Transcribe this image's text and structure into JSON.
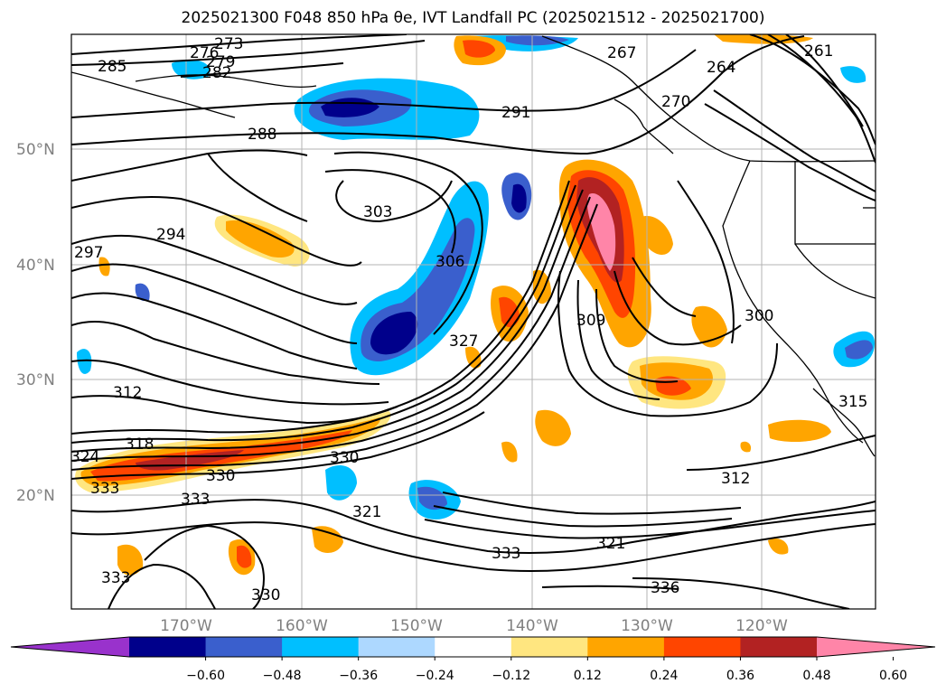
{
  "title": "2025021300 F048 850 hPa θe, IVT Landfall PC (2025021512 - 2025021700)",
  "latitude_labels": [
    "50°N",
    "40°N",
    "30°N",
    "20°N"
  ],
  "longitude_labels": [
    "170°W",
    "160°W",
    "150°W",
    "140°W",
    "130°W",
    "120°W"
  ],
  "contour_labels": [
    "273",
    "276",
    "279",
    "282",
    "285",
    "288",
    "291",
    "294",
    "297",
    "300",
    "303",
    "306",
    "309",
    "312",
    "315",
    "318",
    "321",
    "324",
    "327",
    "330",
    "333",
    "336",
    "261",
    "264",
    "267",
    "270"
  ],
  "colorbar": {
    "ticks": [
      "−0.60",
      "−0.48",
      "−0.36",
      "−0.24",
      "−0.12",
      "0.12",
      "0.24",
      "0.36",
      "0.48",
      "0.60"
    ],
    "colors": [
      "#9932cc",
      "#00008b",
      "#3a5fcd",
      "#00bfff",
      "#add8ff",
      "#ffffff",
      "#ffe680",
      "#ffa500",
      "#ff4500",
      "#b22222",
      "#ff85a8"
    ]
  }
}
